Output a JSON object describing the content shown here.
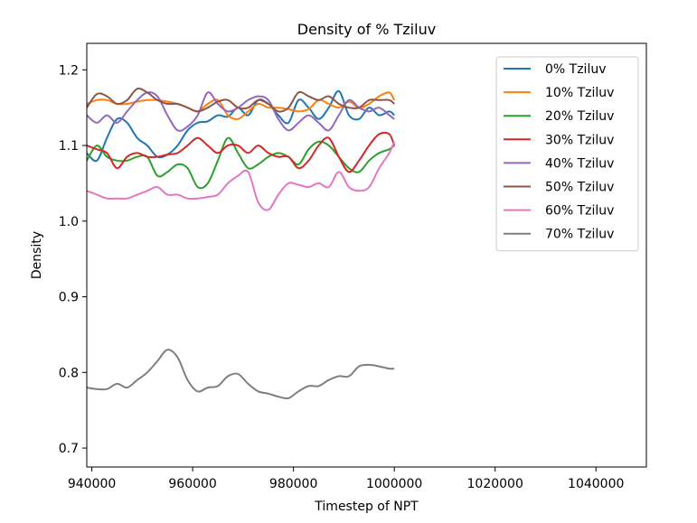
{
  "chart_data": {
    "type": "line",
    "title": "Density of % Tziluv",
    "xlabel": "Timestep of NPT",
    "ylabel": "Density",
    "xlim": [
      939000,
      1050000
    ],
    "ylim": [
      0.675,
      1.235
    ],
    "xticks": [
      940000,
      960000,
      980000,
      1000000,
      1020000,
      1040000
    ],
    "yticks": [
      0.7,
      0.8,
      0.9,
      1.0,
      1.1,
      1.2
    ],
    "ytick_labels": [
      "0.7",
      "0.8",
      "0.9",
      "1.0",
      "1.1",
      "1.2"
    ],
    "grid": false,
    "legend": "top-right",
    "x": [
      939000,
      941000,
      943000,
      945000,
      947000,
      949000,
      951000,
      953000,
      955000,
      957000,
      959000,
      961000,
      963000,
      965000,
      967000,
      969000,
      971000,
      973000,
      975000,
      977000,
      979000,
      981000,
      983000,
      985000,
      987000,
      989000,
      991000,
      993000,
      995000,
      997000,
      999000,
      1000000
    ],
    "series": [
      {
        "name": "0% Tziluv",
        "color": "#1f77b4",
        "values": [
          1.09,
          1.08,
          1.11,
          1.135,
          1.13,
          1.11,
          1.1,
          1.085,
          1.088,
          1.1,
          1.12,
          1.13,
          1.132,
          1.14,
          1.138,
          1.15,
          1.14,
          1.16,
          1.155,
          1.14,
          1.13,
          1.16,
          1.15,
          1.135,
          1.15,
          1.172,
          1.14,
          1.135,
          1.15,
          1.14,
          1.145,
          1.14
        ]
      },
      {
        "name": "10% Tziluv",
        "color": "#ff7f0e",
        "values": [
          1.155,
          1.16,
          1.16,
          1.155,
          1.155,
          1.158,
          1.16,
          1.16,
          1.158,
          1.155,
          1.15,
          1.145,
          1.155,
          1.16,
          1.14,
          1.135,
          1.145,
          1.155,
          1.15,
          1.15,
          1.148,
          1.145,
          1.148,
          1.16,
          1.155,
          1.15,
          1.158,
          1.15,
          1.155,
          1.165,
          1.17,
          1.16
        ]
      },
      {
        "name": "20% Tziluv",
        "color": "#2ca02c",
        "values": [
          1.08,
          1.1,
          1.085,
          1.08,
          1.08,
          1.085,
          1.085,
          1.06,
          1.065,
          1.075,
          1.07,
          1.045,
          1.05,
          1.08,
          1.11,
          1.09,
          1.07,
          1.075,
          1.085,
          1.09,
          1.085,
          1.075,
          1.095,
          1.105,
          1.1,
          1.085,
          1.07,
          1.065,
          1.08,
          1.09,
          1.095,
          1.1
        ]
      },
      {
        "name": "30% Tziluv",
        "color": "#d62728",
        "values": [
          1.1,
          1.095,
          1.09,
          1.07,
          1.085,
          1.09,
          1.085,
          1.085,
          1.088,
          1.09,
          1.1,
          1.11,
          1.1,
          1.09,
          1.1,
          1.1,
          1.09,
          1.1,
          1.09,
          1.085,
          1.085,
          1.07,
          1.08,
          1.1,
          1.11,
          1.085,
          1.065,
          1.08,
          1.1,
          1.115,
          1.115,
          1.1
        ]
      },
      {
        "name": "40% Tziluv",
        "color": "#9467bd",
        "values": [
          1.14,
          1.13,
          1.14,
          1.13,
          1.145,
          1.16,
          1.17,
          1.165,
          1.14,
          1.12,
          1.125,
          1.14,
          1.17,
          1.155,
          1.145,
          1.15,
          1.16,
          1.165,
          1.16,
          1.135,
          1.12,
          1.13,
          1.14,
          1.13,
          1.12,
          1.14,
          1.16,
          1.15,
          1.145,
          1.15,
          1.14,
          1.135
        ]
      },
      {
        "name": "50% Tziluv",
        "color": "#8c564b",
        "values": [
          1.15,
          1.168,
          1.165,
          1.155,
          1.16,
          1.175,
          1.17,
          1.16,
          1.155,
          1.155,
          1.15,
          1.145,
          1.15,
          1.158,
          1.16,
          1.15,
          1.15,
          1.16,
          1.155,
          1.145,
          1.15,
          1.17,
          1.165,
          1.16,
          1.165,
          1.155,
          1.15,
          1.15,
          1.16,
          1.16,
          1.16,
          1.155
        ]
      },
      {
        "name": "60% Tziluv",
        "color": "#e377c2",
        "values": [
          1.04,
          1.035,
          1.03,
          1.03,
          1.03,
          1.035,
          1.04,
          1.045,
          1.035,
          1.035,
          1.03,
          1.03,
          1.032,
          1.035,
          1.05,
          1.06,
          1.065,
          1.025,
          1.015,
          1.035,
          1.05,
          1.048,
          1.045,
          1.05,
          1.045,
          1.065,
          1.045,
          1.04,
          1.045,
          1.07,
          1.09,
          1.105
        ]
      },
      {
        "name": "70% Tziluv",
        "color": "#7f7f7f",
        "values": [
          0.78,
          0.778,
          0.778,
          0.785,
          0.78,
          0.79,
          0.8,
          0.815,
          0.83,
          0.82,
          0.79,
          0.775,
          0.78,
          0.782,
          0.795,
          0.798,
          0.785,
          0.775,
          0.772,
          0.768,
          0.766,
          0.775,
          0.782,
          0.782,
          0.79,
          0.795,
          0.795,
          0.808,
          0.81,
          0.808,
          0.805,
          0.805
        ]
      }
    ]
  }
}
